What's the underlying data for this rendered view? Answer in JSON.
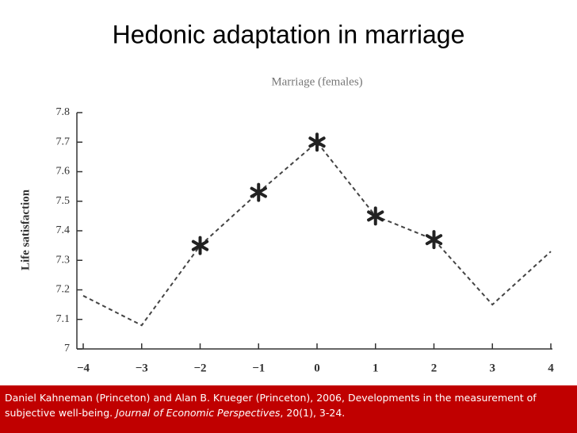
{
  "title": "Hedonic adaptation in marriage",
  "chart_data": {
    "type": "line",
    "title": "Marriage (females)",
    "y_label": "Life satisfaction",
    "x": [
      -4,
      -3,
      -2,
      -1,
      0,
      1,
      2,
      3,
      4
    ],
    "values": [
      7.18,
      7.08,
      7.35,
      7.53,
      7.7,
      7.45,
      7.37,
      7.15,
      7.33
    ],
    "significant": [
      false,
      false,
      true,
      true,
      true,
      true,
      true,
      false,
      false
    ],
    "color": "#444444",
    "xlim": [
      -4,
      4
    ],
    "xticks": [
      {
        "value": -4,
        "label": "−4"
      },
      {
        "value": -3,
        "label": "−3"
      },
      {
        "value": -2,
        "label": "−2"
      },
      {
        "value": -1,
        "label": "−1"
      },
      0,
      1,
      2,
      3,
      4
    ],
    "ylim": [
      7,
      7.8
    ],
    "yticks": [
      7,
      7.1,
      7.2,
      7.3,
      7.4,
      7.5,
      7.6,
      7.7,
      7.8
    ]
  },
  "footer": {
    "text": "Daniel Kahneman (Princeton) and Alan B. Krueger (Princeton), 2006, Developments in the measurement of subjective well-being. ",
    "journal": "Journal of Economic Perspectives",
    "rest": ", 20(1), 3-24."
  }
}
